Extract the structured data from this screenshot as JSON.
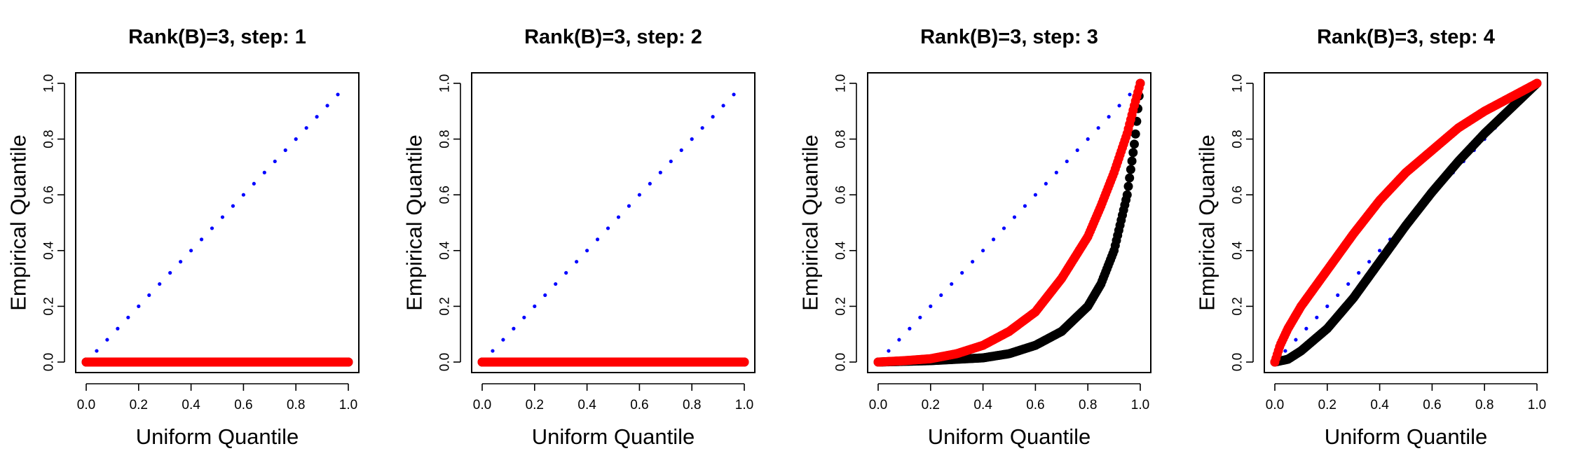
{
  "chart_data": [
    {
      "type": "scatter",
      "title": "Rank(B)=3, step: 1",
      "xlabel": "Uniform Quantile",
      "ylabel": "Empirical Quantile",
      "xlim": [
        0,
        1
      ],
      "ylim": [
        0,
        1
      ],
      "xticks": [
        "0.0",
        "0.2",
        "0.4",
        "0.6",
        "0.8",
        "1.0"
      ],
      "yticks": [
        "0.0",
        "0.2",
        "0.4",
        "0.6",
        "0.8",
        "1.0"
      ],
      "grid": false,
      "series": [
        {
          "color": "#0000ff",
          "style": "dotted-reference",
          "x": [
            0,
            1
          ],
          "y": [
            0,
            1
          ]
        },
        {
          "color": "#000000",
          "style": "points",
          "x": [
            0,
            0.2,
            0.4,
            0.6,
            0.8,
            1.0
          ],
          "y": [
            0,
            0,
            0,
            0,
            0,
            0
          ]
        },
        {
          "color": "#ff0000",
          "style": "points",
          "x": [
            0,
            0.2,
            0.4,
            0.6,
            0.8,
            1.0
          ],
          "y": [
            0,
            0,
            0,
            0,
            0,
            0
          ]
        }
      ]
    },
    {
      "type": "scatter",
      "title": "Rank(B)=3, step: 2",
      "xlabel": "Uniform Quantile",
      "ylabel": "Empirical Quantile",
      "xlim": [
        0,
        1
      ],
      "ylim": [
        0,
        1
      ],
      "xticks": [
        "0.0",
        "0.2",
        "0.4",
        "0.6",
        "0.8",
        "1.0"
      ],
      "yticks": [
        "0.0",
        "0.2",
        "0.4",
        "0.6",
        "0.8",
        "1.0"
      ],
      "grid": false,
      "series": [
        {
          "color": "#0000ff",
          "style": "dotted-reference",
          "x": [
            0,
            1
          ],
          "y": [
            0,
            1
          ]
        },
        {
          "color": "#000000",
          "style": "points",
          "x": [
            0,
            0.2,
            0.4,
            0.6,
            0.8,
            1.0
          ],
          "y": [
            0,
            0,
            0,
            0,
            0,
            0
          ]
        },
        {
          "color": "#ff0000",
          "style": "points",
          "x": [
            0,
            0.2,
            0.4,
            0.6,
            0.8,
            1.0
          ],
          "y": [
            0,
            0,
            0,
            0,
            0,
            0
          ]
        }
      ]
    },
    {
      "type": "scatter",
      "title": "Rank(B)=3, step: 3",
      "xlabel": "Uniform Quantile",
      "ylabel": "Empirical Quantile",
      "xlim": [
        0,
        1
      ],
      "ylim": [
        0,
        1
      ],
      "xticks": [
        "0.0",
        "0.2",
        "0.4",
        "0.6",
        "0.8",
        "1.0"
      ],
      "yticks": [
        "0.0",
        "0.2",
        "0.4",
        "0.6",
        "0.8",
        "1.0"
      ],
      "grid": false,
      "series": [
        {
          "color": "#0000ff",
          "style": "dotted-reference",
          "x": [
            0,
            1
          ],
          "y": [
            0,
            1
          ]
        },
        {
          "color": "#000000",
          "style": "points",
          "x": [
            0,
            0.2,
            0.4,
            0.5,
            0.6,
            0.7,
            0.8,
            0.85,
            0.9,
            0.95,
            0.98,
            1.0
          ],
          "y": [
            0,
            0.005,
            0.015,
            0.03,
            0.06,
            0.11,
            0.2,
            0.28,
            0.4,
            0.6,
            0.8,
            1.0
          ]
        },
        {
          "color": "#ff0000",
          "style": "points",
          "x": [
            0,
            0.1,
            0.2,
            0.3,
            0.4,
            0.5,
            0.6,
            0.7,
            0.8,
            0.85,
            0.9,
            0.95,
            0.98,
            1.0
          ],
          "y": [
            0,
            0.005,
            0.012,
            0.03,
            0.06,
            0.11,
            0.18,
            0.3,
            0.45,
            0.56,
            0.68,
            0.82,
            0.93,
            1.0
          ]
        }
      ]
    },
    {
      "type": "scatter",
      "title": "Rank(B)=3, step: 4",
      "xlabel": "Uniform Quantile",
      "ylabel": "Empirical Quantile",
      "xlim": [
        0,
        1
      ],
      "ylim": [
        0,
        1
      ],
      "xticks": [
        "0.0",
        "0.2",
        "0.4",
        "0.6",
        "0.8",
        "1.0"
      ],
      "yticks": [
        "0.0",
        "0.2",
        "0.4",
        "0.6",
        "0.8",
        "1.0"
      ],
      "grid": false,
      "series": [
        {
          "color": "#0000ff",
          "style": "dotted-reference",
          "x": [
            0,
            1
          ],
          "y": [
            0,
            1
          ]
        },
        {
          "color": "#000000",
          "style": "points",
          "x": [
            0,
            0.05,
            0.1,
            0.2,
            0.3,
            0.4,
            0.5,
            0.6,
            0.7,
            0.8,
            0.9,
            1.0
          ],
          "y": [
            0,
            0.01,
            0.04,
            0.12,
            0.23,
            0.36,
            0.49,
            0.61,
            0.72,
            0.82,
            0.91,
            1.0
          ]
        },
        {
          "color": "#ff0000",
          "style": "points",
          "x": [
            0,
            0.02,
            0.05,
            0.1,
            0.2,
            0.3,
            0.4,
            0.5,
            0.6,
            0.7,
            0.8,
            0.9,
            1.0
          ],
          "y": [
            0,
            0.06,
            0.12,
            0.2,
            0.33,
            0.46,
            0.58,
            0.68,
            0.76,
            0.84,
            0.9,
            0.95,
            1.0
          ]
        }
      ]
    }
  ]
}
